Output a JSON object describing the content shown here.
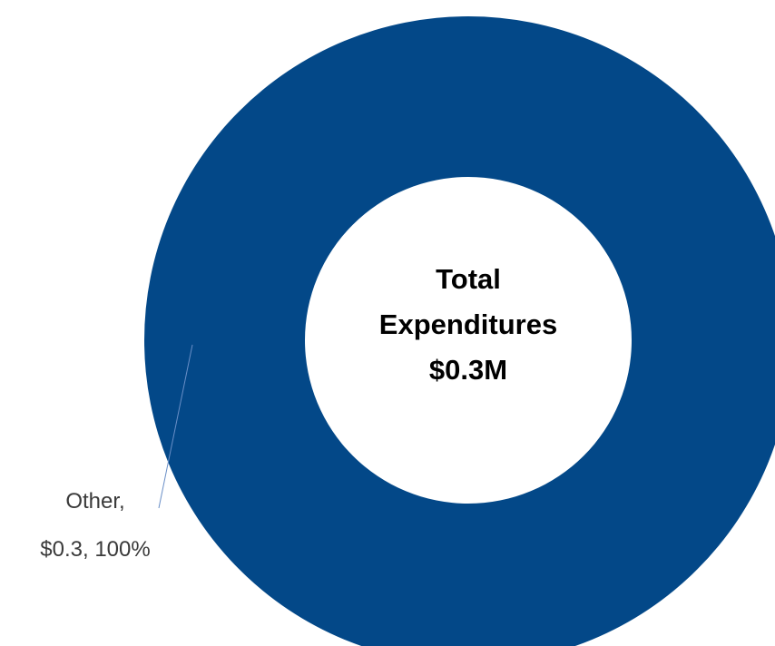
{
  "chart_data": {
    "type": "donut",
    "title": "",
    "center_text": [
      "Total",
      "Expenditures",
      "$0.3M"
    ],
    "slices": [
      {
        "label": "Other",
        "value": 0.3,
        "percent": 100,
        "label_lines": [
          "Other,",
          "$0.3, 100%"
        ],
        "color": "#034888"
      }
    ],
    "leader_line_color": "#6a8fc7",
    "legend": "none"
  }
}
